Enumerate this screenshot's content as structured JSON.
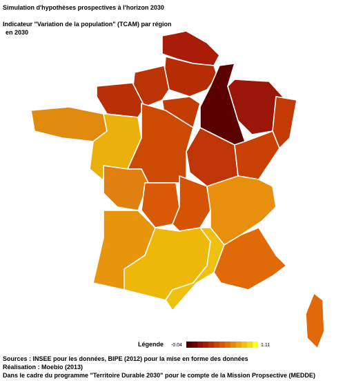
{
  "header": {
    "title": "Simulation d'hypothèses prospectives à l'horizon 2030",
    "subtitle": [
      "Indicateur \"Variation de la population\" (TCAM) par région",
      "en 2030"
    ]
  },
  "legend": {
    "title": "Légende",
    "min": "-0.04",
    "max": "1.11",
    "colors": [
      "#4a0000",
      "#6e0000",
      "#901004",
      "#a81c06",
      "#bb2e05",
      "#cc4204",
      "#d85806",
      "#e07008",
      "#e8880c",
      "#eea40e",
      "#f2c00e",
      "#f8dc10",
      "#ffff20"
    ]
  },
  "footer": [
    "Sources :  INSEE pour les données, BIPE (2012) pour la mise en forme des données",
    "Réalisation : Moebio (2013)",
    "Dans le cadre du programme \"Territoire Durable 2030\" pour le compte de la Mission Propsective (MEDDE)"
  ]
}
